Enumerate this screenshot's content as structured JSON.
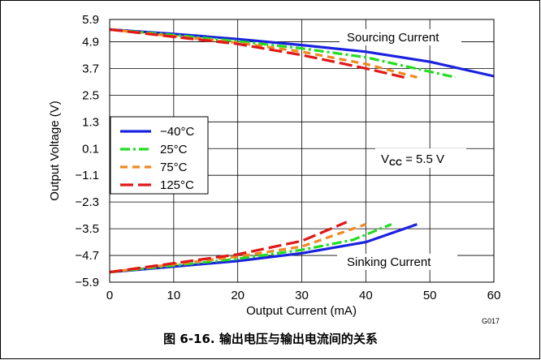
{
  "figure": {
    "caption": "图 6-16. 输出电压与输出电流间的关系",
    "figure_id": "G017"
  },
  "chart_data": {
    "type": "line",
    "xlabel": "Output Current (mA)",
    "ylabel": "Output Voltage (V)",
    "xlim": [
      0,
      60
    ],
    "ylim": [
      -5.9,
      5.9
    ],
    "xticks": [
      "0",
      "10",
      "20",
      "30",
      "40",
      "50",
      "60"
    ],
    "yticks": [
      "5.9",
      "4.9",
      "3.7",
      "2.5",
      "1.3",
      "0.1",
      "−1.1",
      "−2.3",
      "−3.5",
      "−4.7",
      "−5.9"
    ],
    "ytick_values": [
      5.9,
      4.9,
      3.7,
      2.5,
      1.3,
      0.1,
      -1.1,
      -2.3,
      -3.5,
      -4.7,
      -5.9
    ],
    "grid": true,
    "legend_position": "left",
    "annotations": {
      "sourcing": "Sourcing Current",
      "sinking": "Sinking Current",
      "vcc_v": "V",
      "vcc_sub": "CC",
      "vcc_value": " =  5.5 V"
    },
    "series": [
      {
        "name": "−40°C",
        "color": "#1a22e0",
        "dash": "solid",
        "sourcing": [
          [
            0,
            5.45
          ],
          [
            10,
            5.25
          ],
          [
            20,
            5.02
          ],
          [
            30,
            4.75
          ],
          [
            40,
            4.45
          ],
          [
            50,
            4.0
          ],
          [
            60,
            3.35
          ]
        ],
        "sinking": [
          [
            0,
            -5.45
          ],
          [
            10,
            -5.2
          ],
          [
            20,
            -4.95
          ],
          [
            30,
            -4.6
          ],
          [
            40,
            -4.1
          ],
          [
            48,
            -3.3
          ]
        ]
      },
      {
        "name": "25°C",
        "color": "#22dd22",
        "dash": "dashdot",
        "sourcing": [
          [
            0,
            5.45
          ],
          [
            10,
            5.2
          ],
          [
            20,
            4.92
          ],
          [
            30,
            4.6
          ],
          [
            40,
            4.2
          ],
          [
            54,
            3.3
          ]
        ],
        "sinking": [
          [
            0,
            -5.45
          ],
          [
            10,
            -5.15
          ],
          [
            20,
            -4.85
          ],
          [
            30,
            -4.45
          ],
          [
            38,
            -4.0
          ],
          [
            44,
            -3.3
          ]
        ]
      },
      {
        "name": "75°C",
        "color": "#f08820",
        "dash": "dashed",
        "sourcing": [
          [
            0,
            5.45
          ],
          [
            10,
            5.15
          ],
          [
            20,
            4.85
          ],
          [
            30,
            4.45
          ],
          [
            40,
            3.9
          ],
          [
            48,
            3.3
          ]
        ],
        "sinking": [
          [
            0,
            -5.45
          ],
          [
            10,
            -5.1
          ],
          [
            20,
            -4.75
          ],
          [
            30,
            -4.3
          ],
          [
            40,
            -3.3
          ]
        ]
      },
      {
        "name": "125°C",
        "color": "#e01818",
        "dash": "longdash",
        "sourcing": [
          [
            0,
            5.45
          ],
          [
            10,
            5.12
          ],
          [
            20,
            4.8
          ],
          [
            30,
            4.3
          ],
          [
            40,
            3.7
          ],
          [
            46,
            3.3
          ]
        ],
        "sinking": [
          [
            0,
            -5.45
          ],
          [
            10,
            -5.05
          ],
          [
            20,
            -4.65
          ],
          [
            30,
            -4.05
          ],
          [
            37,
            -3.2
          ]
        ]
      }
    ]
  }
}
